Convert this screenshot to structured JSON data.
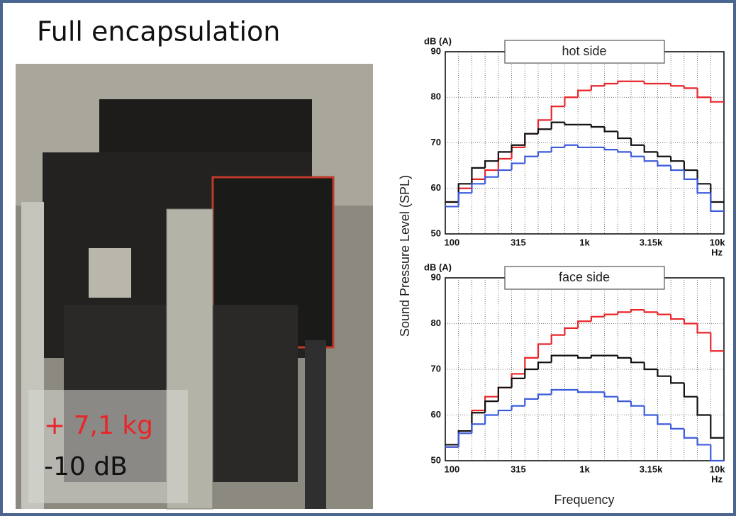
{
  "title": "Full encapsulation",
  "photo_labels": {
    "mass": "+ 7,1 kg",
    "reduction": "-10 dB"
  },
  "chart_data": [
    {
      "type": "step",
      "title": "hot side",
      "y_unit": "dB (A)",
      "x_unit": "Hz",
      "ylabel": "Sound Pressure Level (SPL)",
      "categories": [
        "100",
        null,
        null,
        null,
        null,
        "315",
        null,
        null,
        null,
        null,
        "1k",
        null,
        null,
        null,
        null,
        "3.15k",
        null,
        null,
        null,
        null,
        "10k"
      ],
      "ylim": [
        50,
        90
      ],
      "yticks": [
        50,
        60,
        70,
        80,
        90
      ],
      "grid": true,
      "series": [
        {
          "color": "#e8262a",
          "values": [
            57,
            60,
            62,
            64,
            66.5,
            69,
            72,
            75,
            78,
            80,
            81.5,
            82.5,
            83,
            83.5,
            83.5,
            83,
            83,
            82.5,
            82,
            80,
            79
          ]
        },
        {
          "color": "#111111",
          "values": [
            57,
            61,
            64.5,
            66,
            68,
            69.5,
            72,
            73,
            74.5,
            74,
            74,
            73.5,
            72.5,
            71,
            69.5,
            68,
            67,
            66,
            64,
            61,
            57
          ]
        },
        {
          "color": "#3b5bdb",
          "values": [
            56,
            59,
            61,
            62.5,
            64,
            65.5,
            67,
            68,
            69,
            69.5,
            69,
            69,
            68.5,
            68,
            67,
            66,
            65,
            64,
            62,
            59,
            55
          ]
        }
      ]
    },
    {
      "type": "step",
      "title": "face side",
      "y_unit": "dB (A)",
      "x_unit": "Hz",
      "xlabel": "Frequency",
      "categories": [
        "100",
        null,
        null,
        null,
        null,
        "315",
        null,
        null,
        null,
        null,
        "1k",
        null,
        null,
        null,
        null,
        "3.15k",
        null,
        null,
        null,
        null,
        "10k"
      ],
      "ylim": [
        50,
        90
      ],
      "yticks": [
        50,
        60,
        70,
        80,
        90
      ],
      "grid": true,
      "series": [
        {
          "color": "#e8262a",
          "values": [
            53,
            56.5,
            61,
            64,
            66,
            69,
            72.5,
            75.5,
            77.5,
            79,
            80.5,
            81.5,
            82,
            82.5,
            83,
            82.5,
            82,
            81,
            80,
            78,
            74
          ]
        },
        {
          "color": "#111111",
          "values": [
            53.5,
            56.5,
            60.5,
            63,
            66,
            68,
            70,
            71.5,
            73,
            73,
            72.5,
            73,
            73,
            72.5,
            71.5,
            70,
            68.5,
            67,
            64,
            60,
            55
          ]
        },
        {
          "color": "#3b5bdb",
          "values": [
            53,
            56,
            58,
            60,
            61,
            62,
            63.5,
            64.5,
            65.5,
            65.5,
            65,
            65,
            64,
            63,
            62,
            60,
            58,
            57,
            55,
            53.5,
            50
          ]
        }
      ]
    }
  ]
}
